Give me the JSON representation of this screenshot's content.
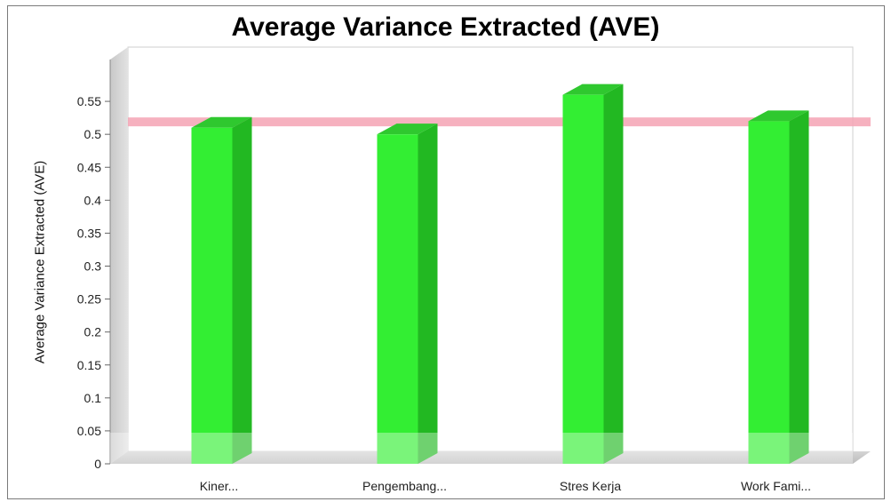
{
  "chart_data": {
    "type": "bar",
    "title": "Average Variance Extracted (AVE)",
    "ylabel": "Average Variance Extracted (AVE)",
    "xlabel": "",
    "categories": [
      "Kiner...",
      "Pengembang...",
      "Stres Kerja",
      "Work Fami..."
    ],
    "values": [
      0.51,
      0.5,
      0.56,
      0.52
    ],
    "ylim": [
      0,
      0.6
    ],
    "yticks": [
      0,
      0.05,
      0.1,
      0.15,
      0.2,
      0.25,
      0.3,
      0.35,
      0.4,
      0.45,
      0.5,
      0.55
    ],
    "ytick_labels": [
      "0",
      "0.05",
      "0.1",
      "0.15",
      "0.2",
      "0.25",
      "0.3",
      "0.35",
      "0.4",
      "0.45",
      "0.5",
      "0.55"
    ],
    "reference_line": 0.5,
    "bar_color": "#33ee33",
    "bar_side_color": "#22b822",
    "bar_top_color": "#2fc82f",
    "reference_line_color": "#f4a3b4",
    "grid": false,
    "legend": "none"
  }
}
